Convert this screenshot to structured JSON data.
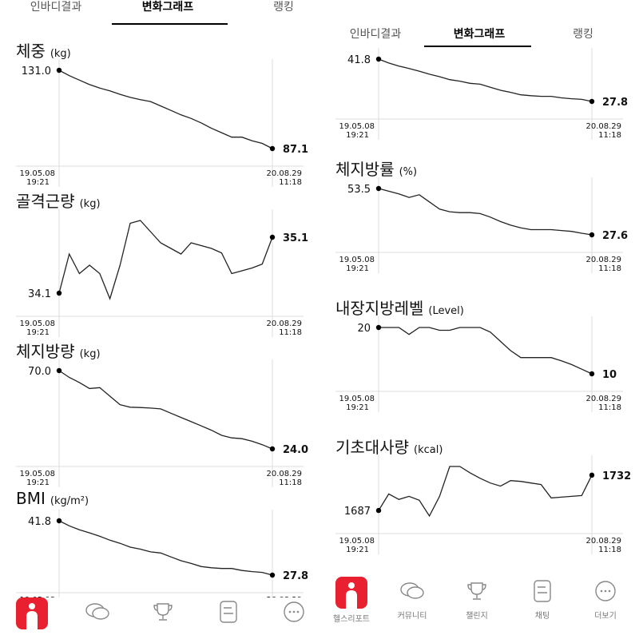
{
  "tabs": [
    {
      "label": "인바디결과",
      "active": false
    },
    {
      "label": "변화그래프",
      "active": true
    },
    {
      "label": "랭킹",
      "active": false
    }
  ],
  "start_date": {
    "date": "19.05.08",
    "time": "19:21"
  },
  "end_date": {
    "date": "20.08.29",
    "time": "11:18"
  },
  "graphs": {
    "weight": {
      "title": "체중",
      "unit": "(kg)",
      "start_label": "131.0",
      "end_label": "87.1",
      "values": [
        131.0,
        128.0,
        125.5,
        123.0,
        121.0,
        119.5,
        117.5,
        115.8,
        114.5,
        113.5,
        111.0,
        108.5,
        106.0,
        104.0,
        101.5,
        98.5,
        96.0,
        93.5,
        93.5,
        91.5,
        90.0,
        87.1
      ]
    },
    "muscle": {
      "title": "골격근량",
      "unit": "(kg)",
      "start_label": "34.1",
      "end_label": "35.1",
      "values": [
        34.1,
        34.8,
        34.45,
        34.6,
        34.45,
        34.0,
        34.6,
        35.35,
        35.4,
        35.2,
        35.0,
        34.9,
        34.8,
        35.0,
        34.95,
        34.9,
        34.82,
        34.45,
        34.5,
        34.55,
        34.62,
        35.1
      ]
    },
    "fat": {
      "title": "체지방량",
      "unit": "(kg)",
      "start_label": "70.0",
      "end_label": "24.0",
      "values": [
        70.0,
        66.0,
        63.0,
        59.5,
        60.0,
        55.0,
        50.0,
        48.5,
        48.3,
        48.0,
        47.5,
        45.0,
        42.5,
        40.0,
        37.5,
        35.0,
        32.0,
        30.5,
        30.0,
        28.5,
        26.5,
        24.0
      ]
    },
    "bmi": {
      "title": "BMI",
      "unit": "(kg/m²)",
      "start_label": "41.8",
      "end_label": "27.8",
      "values": [
        41.8,
        40.5,
        39.5,
        38.7,
        37.8,
        36.8,
        36.0,
        35.0,
        34.5,
        33.8,
        33.5,
        32.5,
        31.5,
        30.8,
        30.0,
        29.7,
        29.5,
        29.5,
        29.0,
        28.7,
        28.5,
        27.8
      ]
    },
    "bmi_top": {
      "start_label": "41.8",
      "end_label": "27.8",
      "values": [
        41.8,
        40.5,
        39.5,
        38.7,
        37.8,
        36.8,
        36.0,
        35.0,
        34.5,
        33.8,
        33.5,
        32.5,
        31.5,
        30.8,
        30.0,
        29.7,
        29.5,
        29.5,
        29.0,
        28.7,
        28.5,
        27.8
      ]
    },
    "fat_pct": {
      "title": "체지방률",
      "unit": "(%)",
      "start_label": "53.5",
      "end_label": "27.6",
      "values": [
        53.5,
        52.0,
        50.5,
        48.5,
        50.0,
        46.0,
        42.0,
        40.5,
        40.0,
        40.0,
        39.5,
        37.5,
        35.0,
        33.0,
        31.5,
        30.5,
        30.5,
        30.5,
        30.0,
        29.5,
        28.5,
        27.6
      ]
    },
    "visceral": {
      "title": "내장지방레벨",
      "unit": "(Level)",
      "start_label": "20",
      "end_label": "10",
      "values": [
        20,
        20,
        20,
        18.5,
        20,
        20,
        19.4,
        19.4,
        20,
        20,
        20,
        19.0,
        17.0,
        15.0,
        13.5,
        13.5,
        13.5,
        13.5,
        12.8,
        12.0,
        11.0,
        10
      ]
    },
    "bmr": {
      "title": "기초대사량",
      "unit": "(kcal)",
      "start_label": "1687",
      "end_label": "1732",
      "values": [
        1687,
        1708,
        1701,
        1705,
        1700,
        1680,
        1705,
        1743,
        1743,
        1735,
        1728,
        1722,
        1718,
        1725,
        1724,
        1722,
        1720,
        1703,
        1704,
        1705,
        1706,
        1732
      ]
    }
  },
  "bottom_nav": [
    {
      "label": "헬스리포트",
      "icon": "health-report-icon",
      "active": true
    },
    {
      "label": "커뮤니티",
      "icon": "chat-bubbles-icon",
      "active": false
    },
    {
      "label": "챌린지",
      "icon": "trophy-icon",
      "active": false
    },
    {
      "label": "채팅",
      "icon": "chat-list-icon",
      "active": false
    },
    {
      "label": "더보기",
      "icon": "more-icon",
      "active": false
    }
  ],
  "colors": {
    "accent": "#E8202F",
    "line": "#222222",
    "grid": "#dddddd"
  }
}
